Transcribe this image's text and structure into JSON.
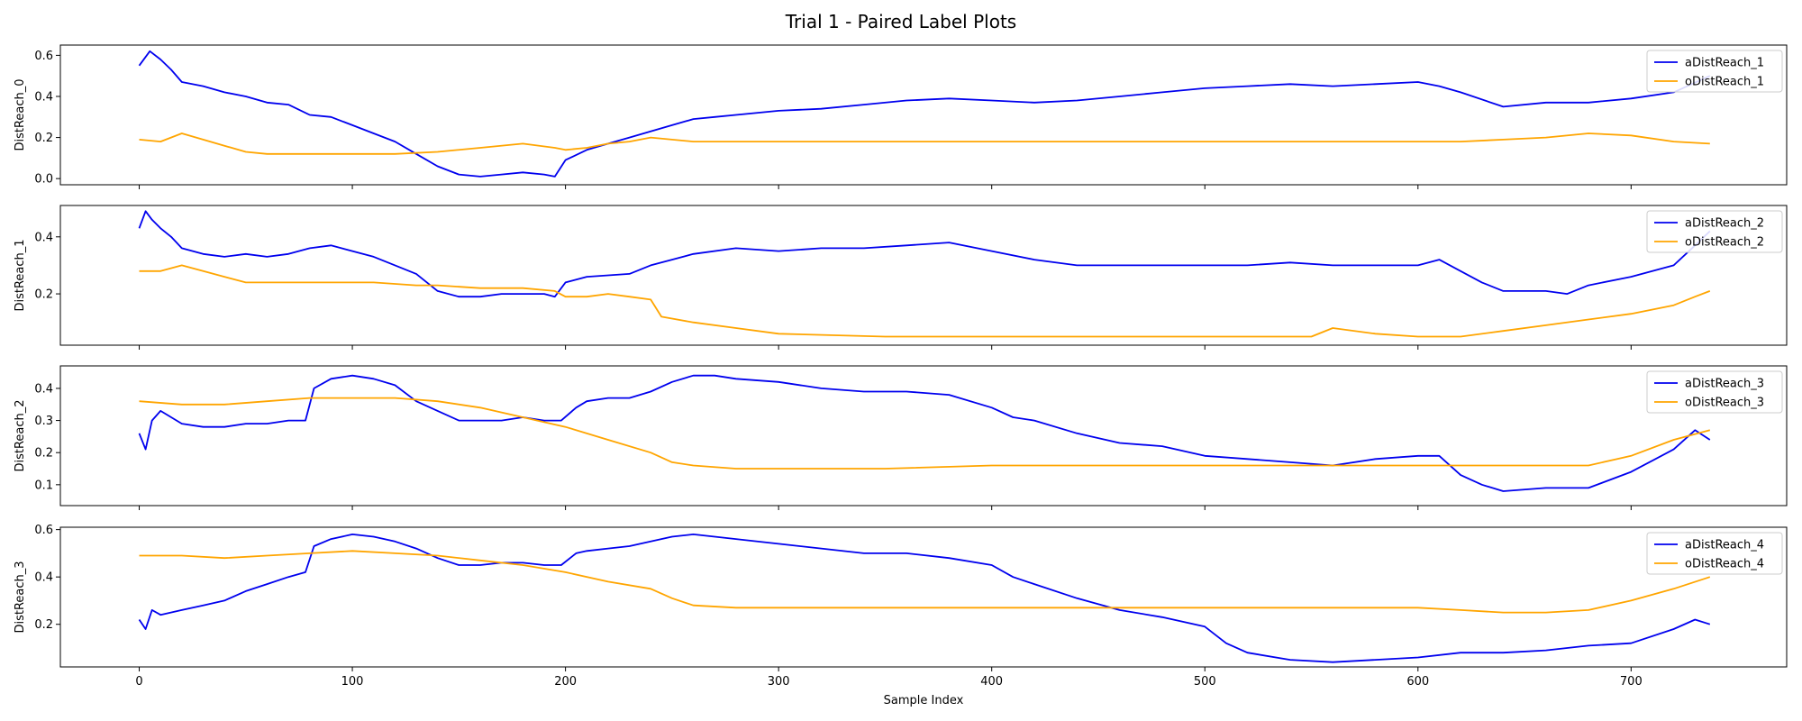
{
  "figure": {
    "title": "Trial 1 - Paired Label Plots",
    "shared_xlabel": "Sample Index"
  },
  "colors": {
    "a_series": "#0000ee",
    "o_series": "#ffa500"
  },
  "chart_data": [
    {
      "type": "line",
      "ylabel": "DistReach_0",
      "xlim": [
        -37,
        773
      ],
      "ylim": [
        -0.03,
        0.65
      ],
      "xticks": [
        0,
        100,
        200,
        300,
        400,
        500,
        600,
        700
      ],
      "yticks": [
        0.0,
        0.2,
        0.4,
        0.6
      ],
      "ytick_labels": [
        "0.0",
        "0.2",
        "0.4",
        "0.6"
      ],
      "legend": "top-right",
      "series": [
        {
          "name": "aDistReach_1",
          "color": "#0000ee",
          "x": [
            0,
            5,
            10,
            15,
            20,
            30,
            40,
            50,
            60,
            70,
            80,
            90,
            100,
            110,
            120,
            130,
            140,
            150,
            160,
            170,
            180,
            190,
            195,
            200,
            210,
            220,
            230,
            240,
            250,
            260,
            270,
            280,
            300,
            320,
            340,
            360,
            380,
            400,
            420,
            440,
            460,
            480,
            500,
            520,
            540,
            560,
            580,
            600,
            610,
            620,
            640,
            660,
            680,
            700,
            720,
            737
          ],
          "y": [
            0.55,
            0.62,
            0.58,
            0.53,
            0.47,
            0.45,
            0.42,
            0.4,
            0.37,
            0.36,
            0.31,
            0.3,
            0.26,
            0.22,
            0.18,
            0.12,
            0.06,
            0.02,
            0.01,
            0.02,
            0.03,
            0.02,
            0.01,
            0.09,
            0.14,
            0.17,
            0.2,
            0.23,
            0.26,
            0.29,
            0.3,
            0.31,
            0.33,
            0.34,
            0.36,
            0.38,
            0.39,
            0.38,
            0.37,
            0.38,
            0.4,
            0.42,
            0.44,
            0.45,
            0.46,
            0.45,
            0.46,
            0.47,
            0.45,
            0.42,
            0.35,
            0.37,
            0.37,
            0.39,
            0.42,
            0.5
          ]
        },
        {
          "name": "oDistReach_1",
          "color": "#ffa500",
          "x": [
            0,
            10,
            20,
            30,
            40,
            50,
            60,
            80,
            100,
            120,
            140,
            160,
            180,
            195,
            200,
            210,
            220,
            230,
            240,
            260,
            300,
            400,
            500,
            560,
            600,
            620,
            640,
            660,
            680,
            700,
            720,
            737
          ],
          "y": [
            0.19,
            0.18,
            0.22,
            0.19,
            0.16,
            0.13,
            0.12,
            0.12,
            0.12,
            0.12,
            0.13,
            0.15,
            0.17,
            0.15,
            0.14,
            0.15,
            0.17,
            0.18,
            0.2,
            0.18,
            0.18,
            0.18,
            0.18,
            0.18,
            0.18,
            0.18,
            0.19,
            0.2,
            0.22,
            0.21,
            0.18,
            0.17
          ]
        }
      ]
    },
    {
      "type": "line",
      "ylabel": "DistReach_1",
      "xlim": [
        -37,
        773
      ],
      "ylim": [
        0.02,
        0.51
      ],
      "xticks": [
        0,
        100,
        200,
        300,
        400,
        500,
        600,
        700
      ],
      "yticks": [
        0.2,
        0.4
      ],
      "ytick_labels": [
        "0.2",
        "0.4"
      ],
      "legend": "top-right",
      "series": [
        {
          "name": "aDistReach_2",
          "color": "#0000ee",
          "x": [
            0,
            3,
            6,
            10,
            15,
            20,
            30,
            40,
            50,
            60,
            70,
            80,
            90,
            100,
            110,
            120,
            130,
            140,
            150,
            160,
            170,
            180,
            190,
            195,
            200,
            210,
            230,
            240,
            250,
            260,
            280,
            300,
            320,
            340,
            360,
            380,
            400,
            420,
            440,
            460,
            480,
            500,
            520,
            540,
            560,
            580,
            600,
            610,
            620,
            630,
            640,
            660,
            670,
            680,
            700,
            720,
            730,
            737
          ],
          "y": [
            0.43,
            0.49,
            0.46,
            0.43,
            0.4,
            0.36,
            0.34,
            0.33,
            0.34,
            0.33,
            0.34,
            0.36,
            0.37,
            0.35,
            0.33,
            0.3,
            0.27,
            0.21,
            0.19,
            0.19,
            0.2,
            0.2,
            0.2,
            0.19,
            0.24,
            0.26,
            0.27,
            0.3,
            0.32,
            0.34,
            0.36,
            0.35,
            0.36,
            0.36,
            0.37,
            0.38,
            0.35,
            0.32,
            0.3,
            0.3,
            0.3,
            0.3,
            0.3,
            0.31,
            0.3,
            0.3,
            0.3,
            0.32,
            0.28,
            0.24,
            0.21,
            0.21,
            0.2,
            0.23,
            0.26,
            0.3,
            0.37,
            0.42
          ]
        },
        {
          "name": "oDistReach_2",
          "color": "#ffa500",
          "x": [
            0,
            10,
            20,
            30,
            40,
            50,
            70,
            90,
            110,
            130,
            140,
            160,
            180,
            195,
            200,
            210,
            220,
            230,
            240,
            245,
            260,
            280,
            300,
            350,
            400,
            450,
            500,
            550,
            560,
            580,
            600,
            620,
            640,
            660,
            680,
            700,
            720,
            730,
            737
          ],
          "y": [
            0.28,
            0.28,
            0.3,
            0.28,
            0.26,
            0.24,
            0.24,
            0.24,
            0.24,
            0.23,
            0.23,
            0.22,
            0.22,
            0.21,
            0.19,
            0.19,
            0.2,
            0.19,
            0.18,
            0.12,
            0.1,
            0.08,
            0.06,
            0.05,
            0.05,
            0.05,
            0.05,
            0.05,
            0.08,
            0.06,
            0.05,
            0.05,
            0.07,
            0.09,
            0.11,
            0.13,
            0.16,
            0.19,
            0.21
          ]
        }
      ]
    },
    {
      "type": "line",
      "ylabel": "DistReach_2",
      "xlim": [
        -37,
        773
      ],
      "ylim": [
        0.035,
        0.47
      ],
      "xticks": [
        0,
        100,
        200,
        300,
        400,
        500,
        600,
        700
      ],
      "yticks": [
        0.1,
        0.2,
        0.3,
        0.4
      ],
      "ytick_labels": [
        "0.1",
        "0.2",
        "0.3",
        "0.4"
      ],
      "legend": "top-right",
      "series": [
        {
          "name": "aDistReach_3",
          "color": "#0000ee",
          "x": [
            0,
            3,
            6,
            10,
            20,
            30,
            40,
            50,
            60,
            70,
            78,
            82,
            90,
            100,
            110,
            120,
            130,
            140,
            150,
            160,
            170,
            180,
            190,
            198,
            205,
            210,
            220,
            230,
            240,
            250,
            260,
            270,
            280,
            300,
            320,
            340,
            360,
            380,
            400,
            410,
            420,
            440,
            460,
            480,
            500,
            520,
            540,
            560,
            580,
            600,
            610,
            620,
            630,
            640,
            660,
            680,
            700,
            720,
            730,
            737
          ],
          "y": [
            0.26,
            0.21,
            0.3,
            0.33,
            0.29,
            0.28,
            0.28,
            0.29,
            0.29,
            0.3,
            0.3,
            0.4,
            0.43,
            0.44,
            0.43,
            0.41,
            0.36,
            0.33,
            0.3,
            0.3,
            0.3,
            0.31,
            0.3,
            0.3,
            0.34,
            0.36,
            0.37,
            0.37,
            0.39,
            0.42,
            0.44,
            0.44,
            0.43,
            0.42,
            0.4,
            0.39,
            0.39,
            0.38,
            0.34,
            0.31,
            0.3,
            0.26,
            0.23,
            0.22,
            0.19,
            0.18,
            0.17,
            0.16,
            0.18,
            0.19,
            0.19,
            0.13,
            0.1,
            0.08,
            0.09,
            0.09,
            0.14,
            0.21,
            0.27,
            0.24
          ]
        },
        {
          "name": "oDistReach_3",
          "color": "#ffa500",
          "x": [
            0,
            20,
            40,
            60,
            80,
            90,
            100,
            120,
            140,
            160,
            180,
            200,
            220,
            240,
            250,
            260,
            280,
            300,
            350,
            400,
            450,
            500,
            550,
            600,
            620,
            640,
            660,
            680,
            700,
            720,
            737
          ],
          "y": [
            0.36,
            0.35,
            0.35,
            0.36,
            0.37,
            0.37,
            0.37,
            0.37,
            0.36,
            0.34,
            0.31,
            0.28,
            0.24,
            0.2,
            0.17,
            0.16,
            0.15,
            0.15,
            0.15,
            0.16,
            0.16,
            0.16,
            0.16,
            0.16,
            0.16,
            0.16,
            0.16,
            0.16,
            0.19,
            0.24,
            0.27
          ]
        }
      ]
    },
    {
      "type": "line",
      "ylabel": "DistReach_3",
      "xlim": [
        -37,
        773
      ],
      "ylim": [
        0.02,
        0.61
      ],
      "xticks": [
        0,
        100,
        200,
        300,
        400,
        500,
        600,
        700
      ],
      "xtick_labels": [
        "0",
        "100",
        "200",
        "300",
        "400",
        "500",
        "600",
        "700"
      ],
      "yticks": [
        0.2,
        0.4,
        0.6
      ],
      "ytick_labels": [
        "0.2",
        "0.4",
        "0.6"
      ],
      "legend": "top-right",
      "series": [
        {
          "name": "aDistReach_4",
          "color": "#0000ee",
          "x": [
            0,
            3,
            6,
            10,
            20,
            30,
            40,
            50,
            60,
            70,
            78,
            82,
            90,
            100,
            110,
            120,
            130,
            140,
            150,
            160,
            170,
            180,
            190,
            198,
            205,
            210,
            220,
            230,
            240,
            250,
            260,
            270,
            280,
            300,
            320,
            340,
            360,
            380,
            400,
            410,
            420,
            440,
            460,
            480,
            500,
            510,
            520,
            540,
            560,
            580,
            600,
            620,
            640,
            660,
            680,
            700,
            720,
            730,
            737
          ],
          "y": [
            0.22,
            0.18,
            0.26,
            0.24,
            0.26,
            0.28,
            0.3,
            0.34,
            0.37,
            0.4,
            0.42,
            0.53,
            0.56,
            0.58,
            0.57,
            0.55,
            0.52,
            0.48,
            0.45,
            0.45,
            0.46,
            0.46,
            0.45,
            0.45,
            0.5,
            0.51,
            0.52,
            0.53,
            0.55,
            0.57,
            0.58,
            0.57,
            0.56,
            0.54,
            0.52,
            0.5,
            0.5,
            0.48,
            0.45,
            0.4,
            0.37,
            0.31,
            0.26,
            0.23,
            0.19,
            0.12,
            0.08,
            0.05,
            0.04,
            0.05,
            0.06,
            0.08,
            0.08,
            0.09,
            0.11,
            0.12,
            0.18,
            0.22,
            0.2
          ]
        },
        {
          "name": "oDistReach_4",
          "color": "#ffa500",
          "x": [
            0,
            20,
            40,
            60,
            80,
            100,
            120,
            140,
            160,
            180,
            200,
            220,
            240,
            250,
            260,
            280,
            300,
            350,
            400,
            450,
            500,
            550,
            600,
            620,
            640,
            660,
            680,
            700,
            720,
            737
          ],
          "y": [
            0.49,
            0.49,
            0.48,
            0.49,
            0.5,
            0.51,
            0.5,
            0.49,
            0.47,
            0.45,
            0.42,
            0.38,
            0.35,
            0.31,
            0.28,
            0.27,
            0.27,
            0.27,
            0.27,
            0.27,
            0.27,
            0.27,
            0.27,
            0.26,
            0.25,
            0.25,
            0.26,
            0.3,
            0.35,
            0.4
          ]
        }
      ]
    }
  ]
}
